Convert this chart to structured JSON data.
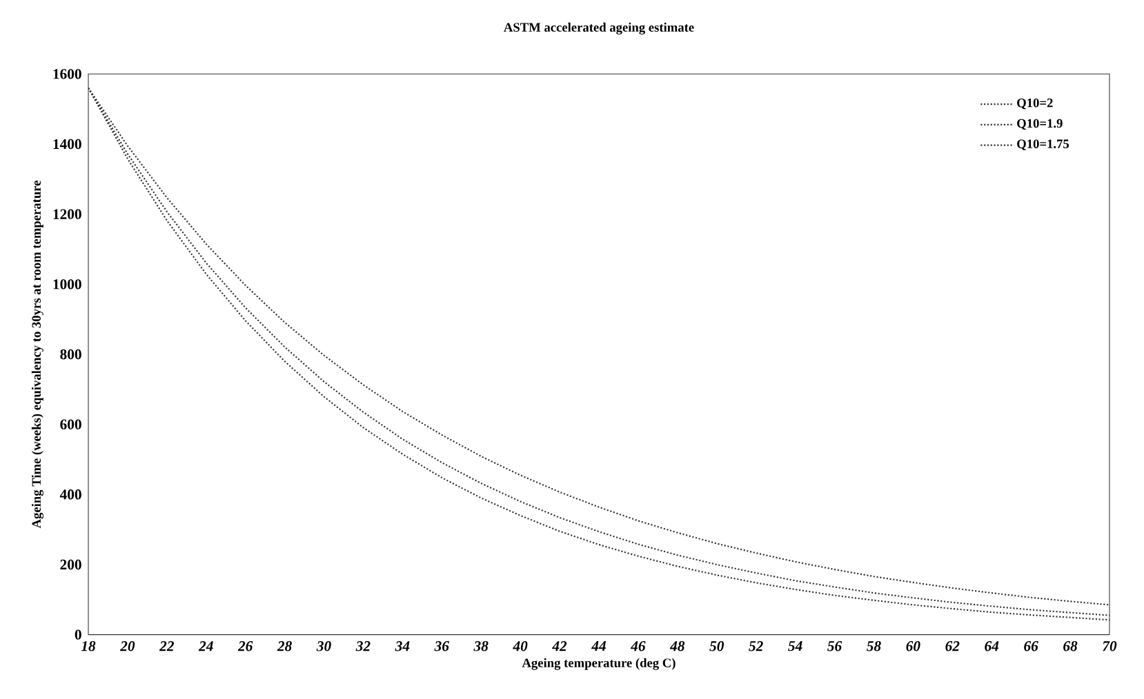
{
  "chart_data": {
    "type": "line",
    "title": "ASTM accelerated ageing estimate",
    "xlabel": "Ageing temperature (deg C)",
    "ylabel": "Ageing Time (weeks) equivalency to 30yrs at room temperature",
    "x": [
      18,
      20,
      22,
      24,
      26,
      28,
      30,
      32,
      34,
      36,
      38,
      40,
      42,
      44,
      46,
      48,
      50,
      52,
      54,
      56,
      58,
      60,
      62,
      64,
      66,
      68,
      70
    ],
    "series": [
      {
        "name": "Q10=2",
        "color": "#333333",
        "values": [
          1560,
          1358,
          1182,
          1029,
          896,
          780,
          679,
          591,
          515,
          448,
          390,
          340,
          295,
          257,
          224,
          195,
          170,
          148,
          129,
          112,
          98,
          85,
          74,
          64,
          56,
          49,
          42
        ]
      },
      {
        "name": "Q10=1.9",
        "color": "#333333",
        "values": [
          1560,
          1372,
          1207,
          1061,
          933,
          821,
          722,
          635,
          558,
          491,
          432,
          380,
          334,
          294,
          258,
          227,
          200,
          176,
          154,
          136,
          119,
          105,
          92,
          81,
          71,
          63,
          55
        ]
      },
      {
        "name": "Q10=1.75",
        "color": "#333333",
        "values": [
          1560,
          1395,
          1247,
          1115,
          997,
          891,
          797,
          713,
          637,
          570,
          509,
          455,
          407,
          364,
          325,
          291,
          260,
          233,
          208,
          186,
          166,
          149,
          133,
          119,
          106,
          95,
          85
        ]
      }
    ],
    "xlim": [
      18,
      70
    ],
    "xticks": [
      18,
      20,
      22,
      24,
      26,
      28,
      30,
      32,
      34,
      36,
      38,
      40,
      42,
      44,
      46,
      48,
      50,
      52,
      54,
      56,
      58,
      60,
      62,
      64,
      66,
      68,
      70
    ],
    "ylim": [
      0,
      1600
    ],
    "yticks": [
      0,
      200,
      400,
      600,
      800,
      1000,
      1200,
      1400,
      1600
    ],
    "grid": false,
    "legend": "top right",
    "marker": "none",
    "line_style": "dotted"
  }
}
